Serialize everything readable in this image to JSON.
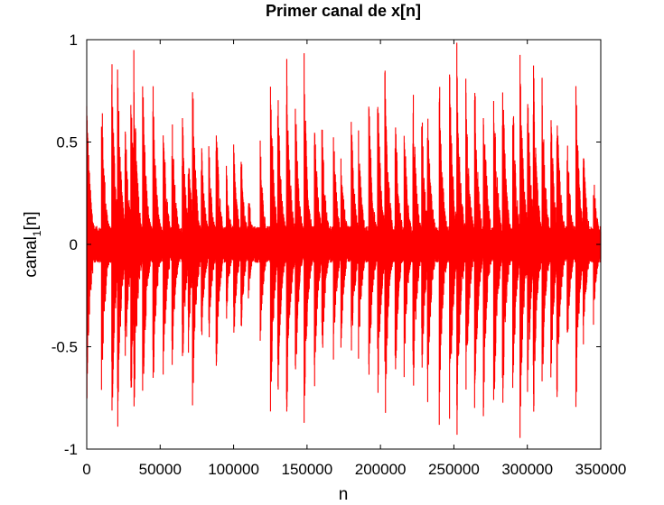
{
  "chart_data": {
    "type": "line",
    "title": "Primer canal de x[n]",
    "xlabel": "n",
    "ylabel": {
      "base": "canal",
      "subscript": "1",
      "suffix": "[n]"
    },
    "xlim": [
      0,
      350000
    ],
    "ylim": [
      -1,
      1
    ],
    "x_ticks": [
      0,
      50000,
      100000,
      150000,
      200000,
      250000,
      300000,
      350000
    ],
    "x_tick_labels": [
      "0",
      "50000",
      "100000",
      "150000",
      "200000",
      "250000",
      "300000",
      "350000"
    ],
    "y_ticks": [
      -1,
      -0.5,
      0,
      0.5,
      1
    ],
    "y_tick_labels": [
      "-1",
      "-0.5",
      "0",
      "0.5",
      "1"
    ],
    "grid": false,
    "series": [
      {
        "color": "#ff0000",
        "signal_length": 350000,
        "transients": [
          {
            "n": 0,
            "amp": 0.8
          },
          {
            "n": 10000,
            "amp": 0.85
          },
          {
            "n": 17000,
            "amp": 1.0
          },
          {
            "n": 21000,
            "amp": 0.95
          },
          {
            "n": 26000,
            "amp": 0.75
          },
          {
            "n": 30000,
            "amp": 0.9
          },
          {
            "n": 32000,
            "amp": 1.0
          },
          {
            "n": 38000,
            "amp": 0.95
          },
          {
            "n": 45000,
            "amp": 0.85
          },
          {
            "n": 52000,
            "amp": 0.75
          },
          {
            "n": 58000,
            "amp": 0.7
          },
          {
            "n": 65000,
            "amp": 0.7
          },
          {
            "n": 69000,
            "amp": 0.6
          },
          {
            "n": 72000,
            "amp": 0.9
          },
          {
            "n": 78000,
            "amp": 0.55
          },
          {
            "n": 83000,
            "amp": 0.55
          },
          {
            "n": 88000,
            "amp": 0.75
          },
          {
            "n": 95000,
            "amp": 0.4
          },
          {
            "n": 100000,
            "amp": 0.55
          },
          {
            "n": 105000,
            "amp": 0.5
          },
          {
            "n": 110000,
            "amp": 0.3
          },
          {
            "n": 118000,
            "amp": 0.55
          },
          {
            "n": 125000,
            "amp": 0.95
          },
          {
            "n": 130000,
            "amp": 0.85
          },
          {
            "n": 136000,
            "amp": 1.0
          },
          {
            "n": 142000,
            "amp": 0.8
          },
          {
            "n": 148000,
            "amp": 0.95
          },
          {
            "n": 155000,
            "amp": 0.75
          },
          {
            "n": 160000,
            "amp": 0.7
          },
          {
            "n": 168000,
            "amp": 0.6
          },
          {
            "n": 173000,
            "amp": 0.55
          },
          {
            "n": 180000,
            "amp": 0.7
          },
          {
            "n": 185000,
            "amp": 0.6
          },
          {
            "n": 192000,
            "amp": 0.8
          },
          {
            "n": 198000,
            "amp": 0.85
          },
          {
            "n": 203000,
            "amp": 1.0
          },
          {
            "n": 210000,
            "amp": 0.75
          },
          {
            "n": 216000,
            "amp": 0.7
          },
          {
            "n": 222000,
            "amp": 0.9
          },
          {
            "n": 228000,
            "amp": 0.75
          },
          {
            "n": 232000,
            "amp": 0.85
          },
          {
            "n": 240000,
            "amp": 0.9
          },
          {
            "n": 247000,
            "amp": 0.95
          },
          {
            "n": 252000,
            "amp": 1.0
          },
          {
            "n": 258000,
            "amp": 0.9
          },
          {
            "n": 264000,
            "amp": 0.95
          },
          {
            "n": 270000,
            "amp": 0.9
          },
          {
            "n": 277000,
            "amp": 1.0
          },
          {
            "n": 283000,
            "amp": 0.95
          },
          {
            "n": 290000,
            "amp": 0.85
          },
          {
            "n": 295000,
            "amp": 1.0
          },
          {
            "n": 300000,
            "amp": 0.9
          },
          {
            "n": 304000,
            "amp": 1.0
          },
          {
            "n": 310000,
            "amp": 0.85
          },
          {
            "n": 316000,
            "amp": 0.75
          },
          {
            "n": 320000,
            "amp": 0.9
          },
          {
            "n": 327000,
            "amp": 0.6
          },
          {
            "n": 333000,
            "amp": 0.9
          },
          {
            "n": 338000,
            "amp": 0.55
          },
          {
            "n": 345000,
            "amp": 0.4
          }
        ]
      }
    ]
  }
}
